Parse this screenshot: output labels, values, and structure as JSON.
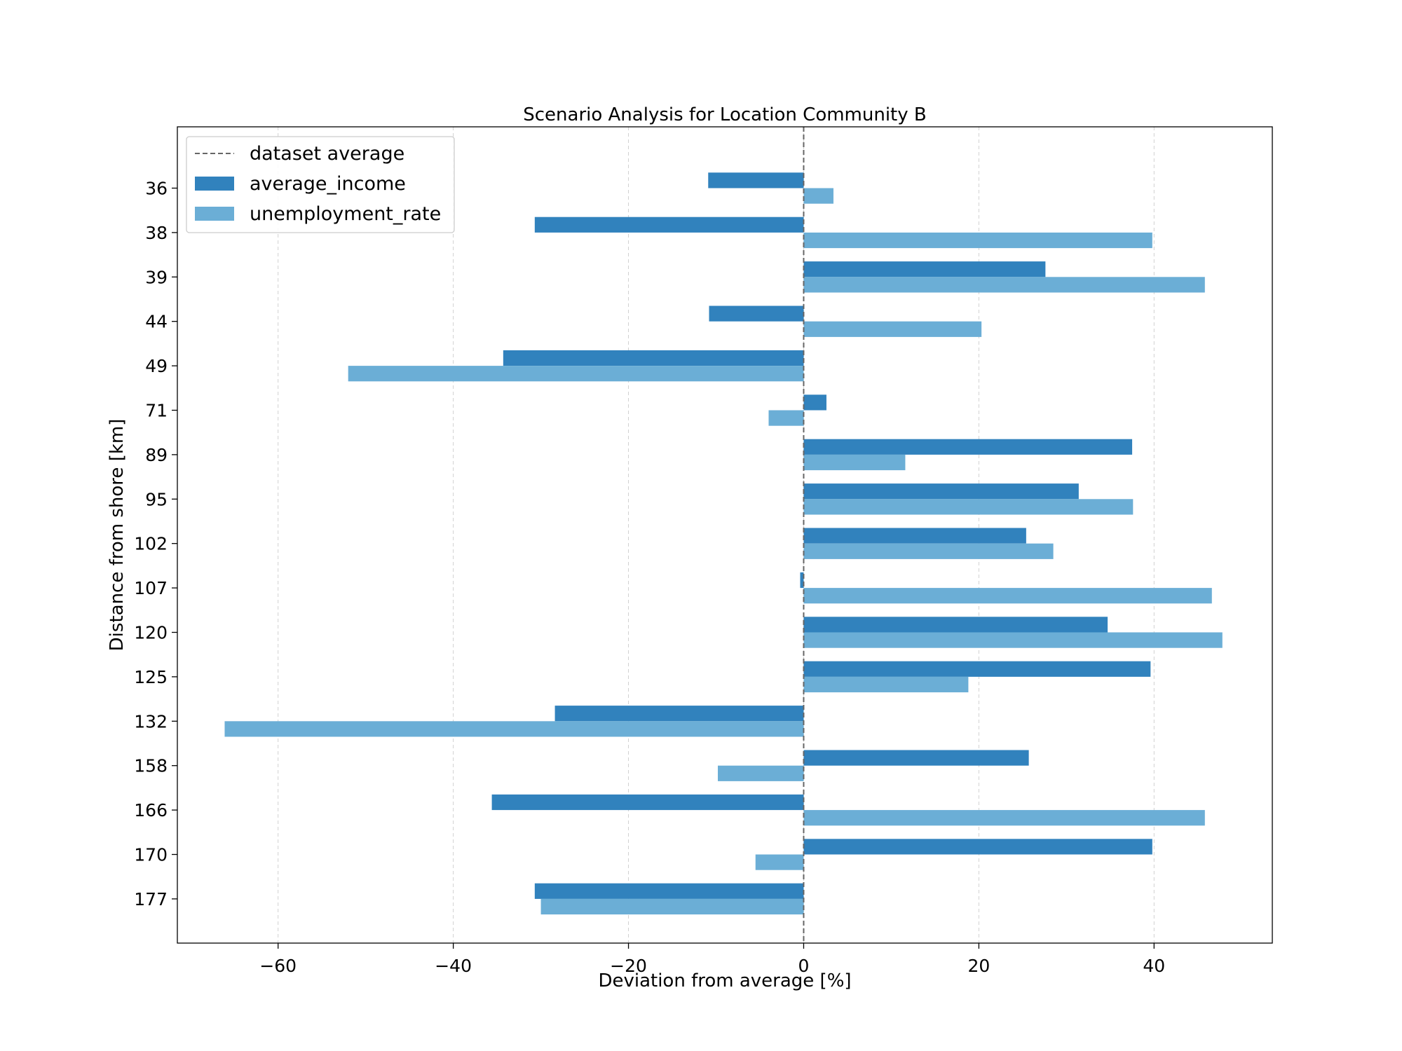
{
  "chart_data": {
    "type": "bar",
    "orientation": "horizontal",
    "title": "Scenario Analysis for Location Community B",
    "xlabel": "Deviation from average [%]",
    "ylabel": "Distance from shore [km]",
    "xlim": [
      -71.5,
      53.5
    ],
    "xticks": [
      -60,
      -40,
      -20,
      0,
      20,
      40
    ],
    "grid": "x-dashed",
    "legend_position": "top-left",
    "reference_line": {
      "name": "dataset average",
      "value": 0
    },
    "categories": [
      "36",
      "38",
      "39",
      "44",
      "49",
      "71",
      "89",
      "95",
      "102",
      "107",
      "120",
      "125",
      "132",
      "158",
      "166",
      "170",
      "177"
    ],
    "series": [
      {
        "name": "average_income",
        "color": "#3182bd",
        "values": [
          -10.9,
          -30.7,
          27.6,
          -10.8,
          -34.3,
          2.6,
          37.5,
          31.4,
          25.4,
          -0.4,
          34.7,
          39.6,
          -28.4,
          25.7,
          -35.6,
          39.8,
          -30.7
        ]
      },
      {
        "name": "unemployment_rate",
        "color": "#6baed6",
        "values": [
          3.4,
          39.8,
          45.8,
          20.3,
          -52.0,
          -4.0,
          11.6,
          37.6,
          28.5,
          46.6,
          47.8,
          18.8,
          -66.1,
          -9.8,
          45.8,
          -5.5,
          -30.0
        ]
      }
    ]
  }
}
